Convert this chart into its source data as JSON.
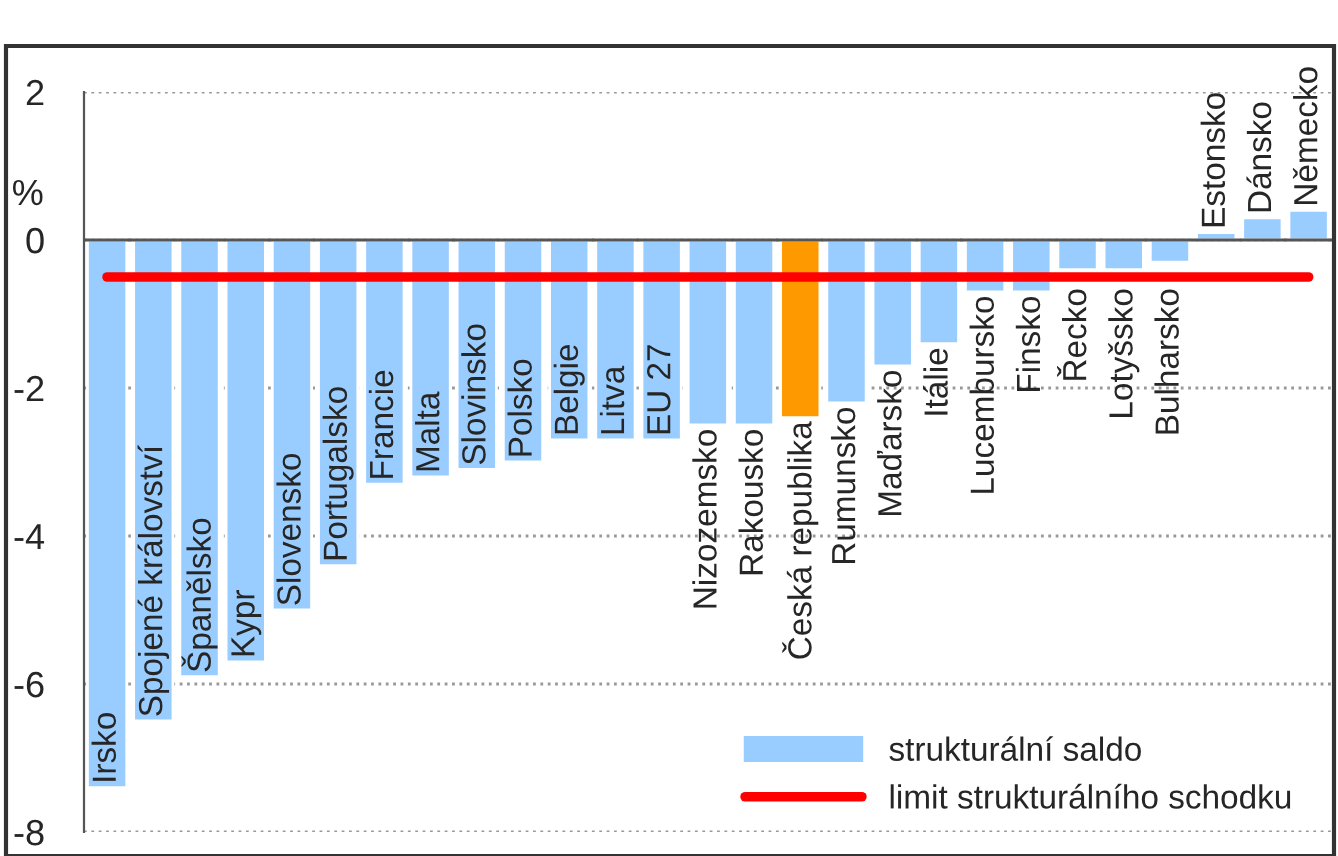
{
  "chart_data": {
    "type": "bar",
    "ylabel": "%",
    "categories": [
      "Irsko",
      "Spojené království",
      "Španělsko",
      "Kypr",
      "Slovensko",
      "Portugalsko",
      "Francie",
      "Malta",
      "Slovinsko",
      "Polsko",
      "Belgie",
      "Litva",
      "EU 27",
      "Nizozemsko",
      "Rakousko",
      "Česká republika",
      "Rumunsko",
      "Maďarsko",
      "Itálie",
      "Lucembursko",
      "Finsko",
      "Řecko",
      "Lotyšsko",
      "Bulharsko",
      "Estonsko",
      "Dánsko",
      "Německo"
    ],
    "series": [
      {
        "name": "strukturální saldo",
        "color": "#99ccff",
        "colors": [
          "#99ccff",
          "#99ccff",
          "#99ccff",
          "#99ccff",
          "#99ccff",
          "#99ccff",
          "#99ccff",
          "#99ccff",
          "#99ccff",
          "#99ccff",
          "#99ccff",
          "#99ccff",
          "#99ccff",
          "#99ccff",
          "#99ccff",
          "#ff9900",
          "#99ccff",
          "#99ccff",
          "#99ccff",
          "#99ccff",
          "#99ccff",
          "#99ccff",
          "#99ccff",
          "#99ccff",
          "#99ccff",
          "#99ccff",
          "#99ccff"
        ],
        "values": [
          -7.4,
          -6.5,
          -5.9,
          -5.7,
          -5.0,
          -4.4,
          -3.3,
          -3.2,
          -3.1,
          -3.0,
          -2.7,
          -2.7,
          -2.7,
          -2.5,
          -2.5,
          -2.4,
          -2.2,
          -1.7,
          -1.4,
          -0.7,
          -0.7,
          -0.4,
          -0.4,
          -0.3,
          0.1,
          0.3,
          0.4
        ]
      },
      {
        "name": "limit strukturálního schodku",
        "type": "line",
        "color": "#ff0000",
        "values": [
          -0.5,
          -0.5,
          -0.5,
          -0.5,
          -0.5,
          -0.5,
          -0.5,
          -0.5,
          -0.5,
          -0.5,
          -0.5,
          -0.5,
          -0.5,
          -0.5,
          -0.5,
          -0.5,
          -0.5,
          -0.5,
          -0.5,
          -0.5,
          -0.5,
          -0.5,
          -0.5,
          -0.5,
          -0.5,
          -0.5,
          -0.5
        ]
      }
    ],
    "ylim": [
      -8,
      2
    ],
    "yticks": [
      -8,
      -6,
      -4,
      -2,
      0,
      2
    ],
    "grid": "y",
    "legend": "bottom right"
  }
}
